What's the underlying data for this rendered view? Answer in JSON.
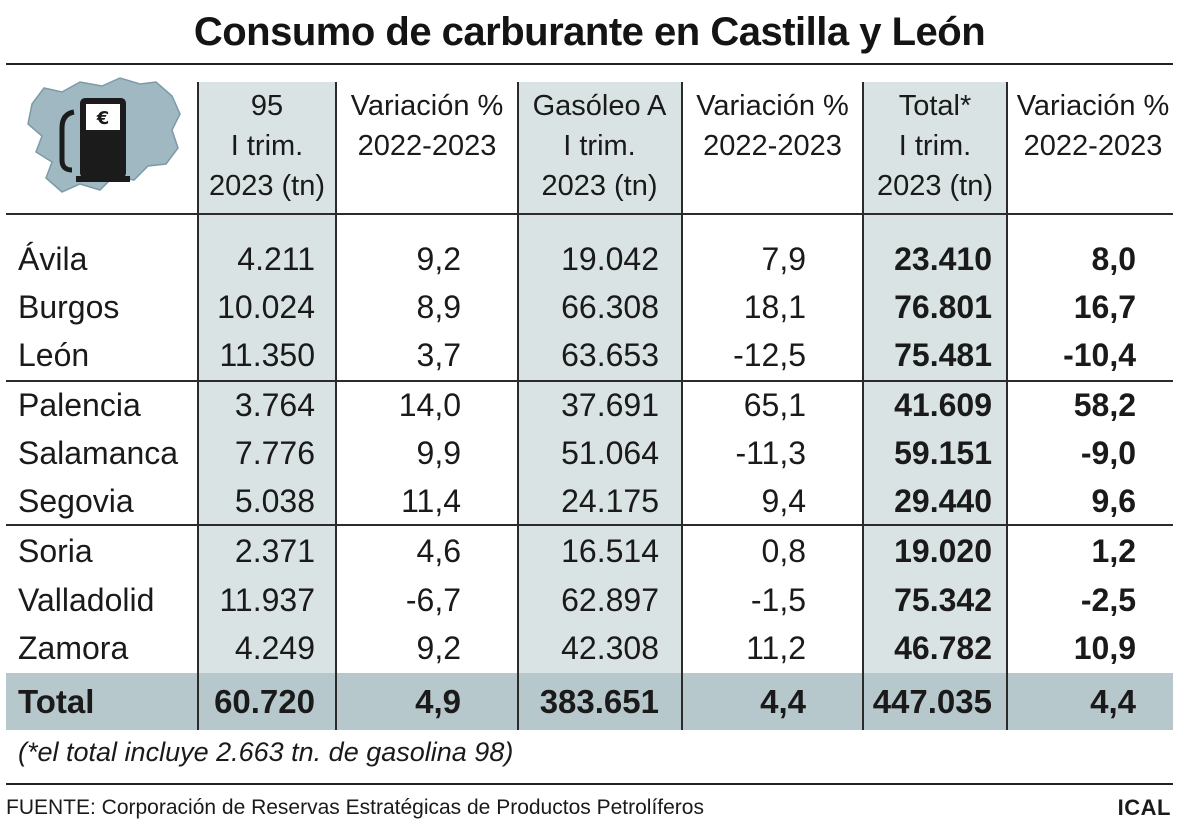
{
  "title": "Consumo de carburante en Castilla y León",
  "colors": {
    "shade": "#d9e3e3",
    "total_bar": "#b7c8cc",
    "map": "#9fb8c2",
    "pump": "#1b1b1b"
  },
  "icon": "fuel-pump-map-icon",
  "pump_symbol": "€",
  "headers": [
    [
      "95",
      "I trim.",
      "2023 (tn)"
    ],
    [
      "Variación %",
      "2022-2023"
    ],
    [
      "Gasóleo A",
      "I trim.",
      "2023 (tn)"
    ],
    [
      "Variación %",
      "2022-2023"
    ],
    [
      "Total*",
      "I trim.",
      "2023 (tn)"
    ],
    [
      "Variación %",
      "2022-2023"
    ]
  ],
  "rows": [
    [
      "Ávila",
      "4.211",
      "9,2",
      "19.042",
      "7,9",
      "23.410",
      "8,0"
    ],
    [
      "Burgos",
      "10.024",
      "8,9",
      "66.308",
      "18,1",
      "76.801",
      "16,7"
    ],
    [
      "León",
      "11.350",
      "3,7",
      "63.653",
      "-12,5",
      "75.481",
      "-10,4"
    ],
    [
      "Palencia",
      "3.764",
      "14,0",
      "37.691",
      "65,1",
      "41.609",
      "58,2"
    ],
    [
      "Salamanca",
      "7.776",
      "9,9",
      "51.064",
      "-11,3",
      "59.151",
      "-9,0"
    ],
    [
      "Segovia",
      "5.038",
      "11,4",
      "24.175",
      "9,4",
      "29.440",
      "9,6"
    ],
    [
      "Soria",
      "2.371",
      "4,6",
      "16.514",
      "0,8",
      "19.020",
      "1,2"
    ],
    [
      "Valladolid",
      "11.937",
      "-6,7",
      "62.897",
      "-1,5",
      "75.342",
      "-2,5"
    ],
    [
      "Zamora",
      "4.249",
      "9,2",
      "42.308",
      "11,2",
      "46.782",
      "10,9"
    ]
  ],
  "total": [
    "Total",
    "60.720",
    "4,9",
    "383.651",
    "4,4",
    "447.035",
    "4,4"
  ],
  "note": "(*el total incluye 2.663 tn. de gasolina 98)",
  "source": "FUENTE: Corporación de Reservas Estratégicas de Productos Petrolíferos",
  "brand": "ICAL"
}
